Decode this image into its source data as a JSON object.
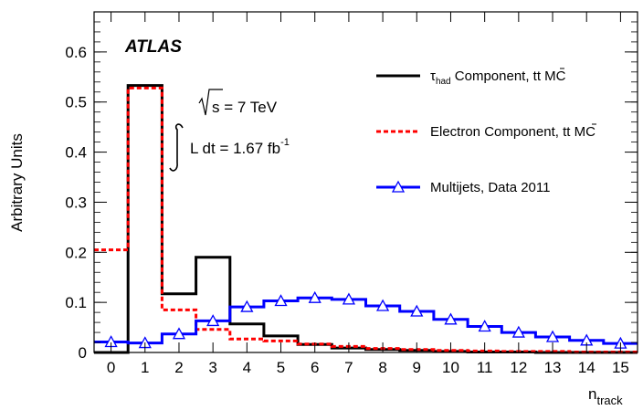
{
  "chart_data": {
    "type": "line",
    "experiment_label": "ATLAS",
    "energy_label": "s = 7 TeV",
    "lumi_prefix": "L dt = 1.67 fb",
    "lumi_superscript": "-1",
    "xlabel": "n",
    "xlabel_subscript": "track",
    "ylabel": "Arbitrary Units",
    "xlim": [
      -0.5,
      15.5
    ],
    "ylim": [
      0,
      0.68
    ],
    "x_ticks": [
      "0",
      "1",
      "2",
      "3",
      "4",
      "5",
      "6",
      "7",
      "8",
      "9",
      "10",
      "11",
      "12",
      "13",
      "14",
      "15"
    ],
    "y_ticks": [
      "0",
      "0.1",
      "0.2",
      "0.3",
      "0.4",
      "0.5",
      "0.6"
    ],
    "y_tick_values": [
      0,
      0.1,
      0.2,
      0.3,
      0.4,
      0.5,
      0.6
    ],
    "legend": {
      "placement": "top-right",
      "tau": {
        "main": "τ",
        "sub": "had",
        "rest": " Component, t",
        "tbar": "t",
        "tail": " MC"
      },
      "electron": {
        "main": "Electron Component, t",
        "tbar": "t",
        "tail": " MC"
      },
      "multijet": {
        "main": "Multijets, Data 2011"
      }
    },
    "x": [
      0,
      1,
      2,
      3,
      4,
      5,
      6,
      7,
      8,
      9,
      10,
      11,
      12,
      13,
      14,
      15
    ],
    "series": [
      {
        "key": "tau",
        "color": "#000000",
        "style": "solid",
        "values": [
          0.0,
          0.533,
          0.117,
          0.19,
          0.057,
          0.033,
          0.016,
          0.009,
          0.006,
          0.004,
          0.002,
          0.001,
          0.001,
          0.0,
          0.0,
          0.0
        ]
      },
      {
        "key": "electron",
        "color": "#ff0000",
        "style": "dashed",
        "values": [
          0.205,
          0.528,
          0.085,
          0.046,
          0.027,
          0.023,
          0.017,
          0.012,
          0.008,
          0.006,
          0.004,
          0.003,
          0.002,
          0.002,
          0.001,
          0.001
        ]
      },
      {
        "key": "multijet",
        "color": "#0000ff",
        "style": "solid",
        "markers": "open-triangle",
        "values": [
          0.021,
          0.019,
          0.037,
          0.063,
          0.091,
          0.103,
          0.109,
          0.106,
          0.093,
          0.082,
          0.066,
          0.052,
          0.04,
          0.031,
          0.024,
          0.018
        ]
      }
    ]
  }
}
